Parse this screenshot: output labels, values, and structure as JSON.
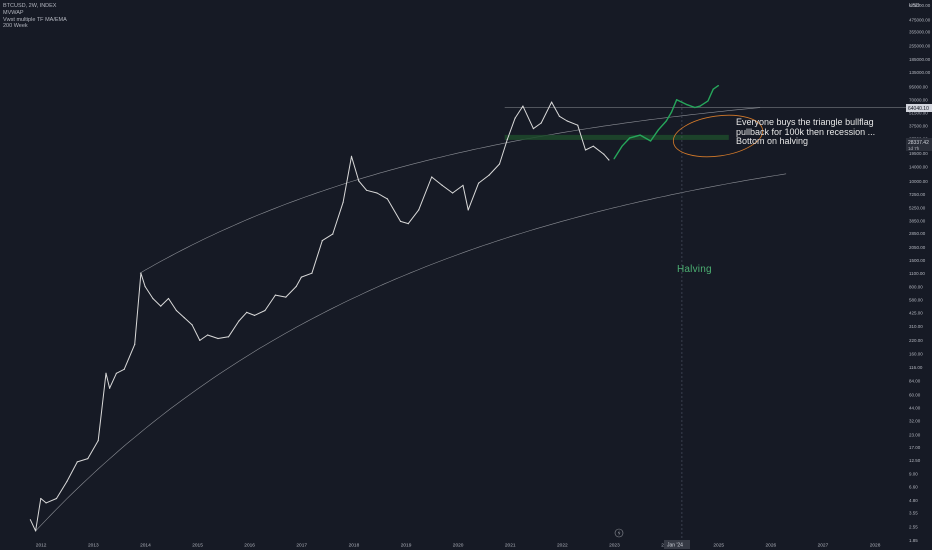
{
  "legend": {
    "symbol": "BTCUSD, 2W, INDEX",
    "line2": "MVWAP",
    "line3": "Vwst multiple TF MA/EMA",
    "line4": "200 Week"
  },
  "annotation": {
    "line1": "Everyone buys the triangle bullflag",
    "line2": "pullback for 100k then recession ...",
    "line3": "Bottom on halving"
  },
  "halving_label": "Halving",
  "y_axis_unit": "USD",
  "y_ticks": [
    "675000.00",
    "475000.00",
    "355000.00",
    "255000.00",
    "185000.00",
    "135000.00",
    "95000.00",
    "70000.00",
    "51500.00",
    "37500.00",
    "27500.00",
    "19500.00",
    "14000.00",
    "10000.00",
    "7250.00",
    "5250.00",
    "3850.00",
    "2850.00",
    "2050.00",
    "1500.00",
    "1100.00",
    "800.00",
    "580.00",
    "425.00",
    "310.00",
    "220.00",
    "160.00",
    "116.00",
    "84.00",
    "60.00",
    "44.00",
    "32.00",
    "23.00",
    "17.00",
    "12.50",
    "9.00",
    "6.60",
    "4.80",
    "3.55",
    "2.55",
    "1.85"
  ],
  "x_ticks": [
    "2012",
    "2013",
    "2014",
    "2015",
    "2016",
    "2017",
    "2018",
    "2019",
    "2020",
    "2021",
    "2022",
    "2023",
    "2024",
    "2025",
    "2026",
    "2027",
    "2028"
  ],
  "price_tag": {
    "label": "64040.10"
  },
  "support_tag": {
    "label": "28337.42",
    "sub": "1d 7h"
  },
  "crosshair_date": "Jan '24",
  "colors": {
    "background": "#161a25",
    "price_line": "#d9d9d9",
    "recent_candles": "#26a65b",
    "channel": "#8c8f96",
    "support_zone": "#1d4a2c",
    "ellipse": "#d47a2a",
    "halving_text": "#4caf72"
  },
  "chart_data": {
    "type": "line",
    "title": "BTCUSD, 2W, INDEX",
    "scale": "log",
    "ylim": [
      1.85,
      675000
    ],
    "xlim": [
      2011.6,
      2028.6
    ],
    "series": [
      {
        "values": [
          [
            2011.8,
            3.0
          ],
          [
            2011.9,
            2.3
          ],
          [
            2012.0,
            5.0
          ],
          [
            2012.1,
            4.5
          ],
          [
            2012.3,
            5.0
          ],
          [
            2012.5,
            7.5
          ],
          [
            2012.7,
            12.0
          ],
          [
            2012.9,
            13.0
          ],
          [
            2013.1,
            20.0
          ],
          [
            2013.25,
            100.0
          ],
          [
            2013.32,
            70.0
          ],
          [
            2013.45,
            100.0
          ],
          [
            2013.6,
            110.0
          ],
          [
            2013.8,
            200.0
          ],
          [
            2013.92,
            1100.0
          ],
          [
            2014.0,
            800.0
          ],
          [
            2014.15,
            600.0
          ],
          [
            2014.3,
            500.0
          ],
          [
            2014.45,
            600.0
          ],
          [
            2014.6,
            450.0
          ],
          [
            2014.75,
            380.0
          ],
          [
            2014.9,
            320.0
          ],
          [
            2015.05,
            220.0
          ],
          [
            2015.2,
            250.0
          ],
          [
            2015.4,
            230.0
          ],
          [
            2015.6,
            240.0
          ],
          [
            2015.8,
            350.0
          ],
          [
            2015.95,
            430.0
          ],
          [
            2016.1,
            400.0
          ],
          [
            2016.3,
            450.0
          ],
          [
            2016.5,
            650.0
          ],
          [
            2016.7,
            620.0
          ],
          [
            2016.9,
            800.0
          ],
          [
            2017.0,
            1000.0
          ],
          [
            2017.2,
            1100.0
          ],
          [
            2017.4,
            2400.0
          ],
          [
            2017.6,
            2800.0
          ],
          [
            2017.8,
            6000.0
          ],
          [
            2017.96,
            18000.0
          ],
          [
            2018.1,
            10000.0
          ],
          [
            2018.25,
            8000.0
          ],
          [
            2018.45,
            7500.0
          ],
          [
            2018.65,
            6500.0
          ],
          [
            2018.9,
            3800.0
          ],
          [
            2019.05,
            3600.0
          ],
          [
            2019.25,
            5000.0
          ],
          [
            2019.5,
            11000.0
          ],
          [
            2019.7,
            9000.0
          ],
          [
            2019.9,
            7500.0
          ],
          [
            2020.1,
            9000.0
          ],
          [
            2020.2,
            5000.0
          ],
          [
            2020.4,
            9500.0
          ],
          [
            2020.6,
            11500.0
          ],
          [
            2020.8,
            15000.0
          ],
          [
            2020.95,
            27000.0
          ],
          [
            2021.1,
            45000.0
          ],
          [
            2021.25,
            60000.0
          ],
          [
            2021.45,
            35000.0
          ],
          [
            2021.6,
            40000.0
          ],
          [
            2021.8,
            66000.0
          ],
          [
            2021.95,
            47000.0
          ],
          [
            2022.1,
            42000.0
          ],
          [
            2022.3,
            38000.0
          ],
          [
            2022.45,
            21000.0
          ],
          [
            2022.6,
            23000.0
          ],
          [
            2022.8,
            19000.0
          ],
          [
            2022.9,
            16500.0
          ]
        ]
      },
      {
        "values": [
          [
            2023.0,
            17000.0
          ],
          [
            2023.15,
            23000.0
          ],
          [
            2023.3,
            28000.0
          ],
          [
            2023.5,
            30000.0
          ],
          [
            2023.7,
            26000.0
          ],
          [
            2023.85,
            34000.0
          ],
          [
            2024.0,
            42000.0
          ],
          [
            2024.1,
            52000.0
          ],
          [
            2024.2,
            70000.0
          ],
          [
            2024.4,
            62000.0
          ],
          [
            2024.55,
            58000.0
          ],
          [
            2024.65,
            60000.0
          ],
          [
            2024.8,
            68000.0
          ],
          [
            2024.9,
            90000.0
          ],
          [
            2025.0,
            98000.0
          ]
        ]
      }
    ],
    "support_zone_value": 28337.42,
    "halving_x": 2024.3
  }
}
